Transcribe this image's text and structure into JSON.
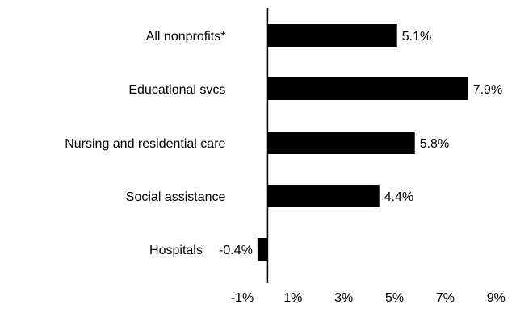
{
  "chart_data": {
    "type": "bar",
    "orientation": "horizontal",
    "categories": [
      "All nonprofits*",
      "Educational svcs",
      "Nursing and residential care",
      "Social assistance",
      "Hospitals"
    ],
    "values": [
      5.1,
      7.9,
      5.8,
      4.4,
      -0.4
    ],
    "value_labels": [
      "5.1%",
      "7.9%",
      "5.8%",
      "4.4%",
      "-0.4%"
    ],
    "xlim": [
      -1,
      9.5
    ],
    "x_ticks": [
      -1,
      1,
      3,
      5,
      7,
      9
    ],
    "x_tick_labels": [
      "-1%",
      "1%",
      "3%",
      "5%",
      "7%",
      "9%"
    ],
    "title": "",
    "xlabel": "",
    "ylabel": "",
    "grid": false,
    "legend": "none",
    "bar_color": "#000000"
  }
}
